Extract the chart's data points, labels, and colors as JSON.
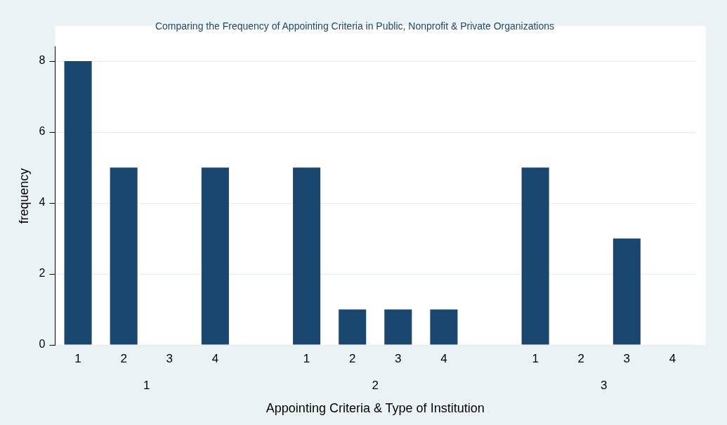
{
  "chart_data": {
    "type": "bar",
    "title": "Comparing the Frequency of Appointing Criteria in Public, Nonprofit & Private Organizations",
    "xlabel": "Appointing Criteria & Type of Institution",
    "ylabel": "frequency",
    "categories": [
      "1",
      "2",
      "3",
      "4",
      null,
      "1",
      "2",
      "3",
      "4",
      null,
      "1",
      "2",
      "3",
      "4"
    ],
    "values": [
      8,
      5,
      0,
      5,
      null,
      5,
      1,
      1,
      1,
      null,
      5,
      0,
      3,
      0
    ],
    "color": "#1a476f",
    "ylim": [
      0,
      8.4
    ],
    "yticks": [
      0,
      2,
      4,
      6,
      8
    ],
    "grid": "y",
    "legend": false,
    "annotations": [
      "1",
      "2",
      "3"
    ]
  }
}
